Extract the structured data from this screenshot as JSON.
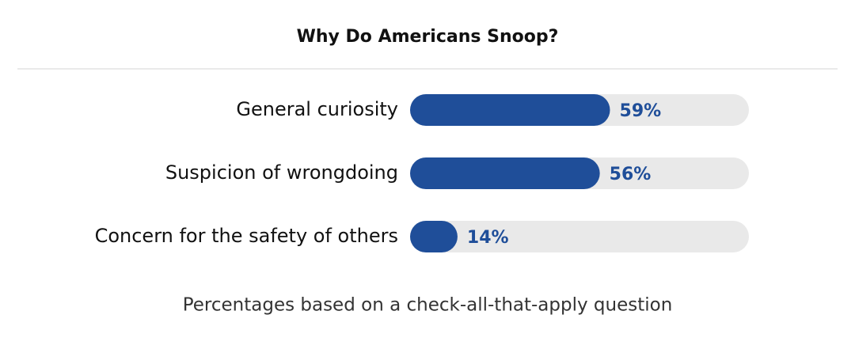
{
  "chart_data": {
    "type": "bar",
    "orientation": "horizontal",
    "title": "Why Do Americans Snoop?",
    "categories": [
      "General curiosity",
      "Suspicion of wrongdoing",
      "Concern for the safety of others"
    ],
    "values": [
      59,
      56,
      14
    ],
    "value_labels": [
      "59%",
      "56%",
      "14%"
    ],
    "color": "#1f4e99",
    "track_color": "#e9e9e9",
    "xlim": [
      0,
      100
    ],
    "note": "Percentages based on a check-all-that-apply question"
  }
}
